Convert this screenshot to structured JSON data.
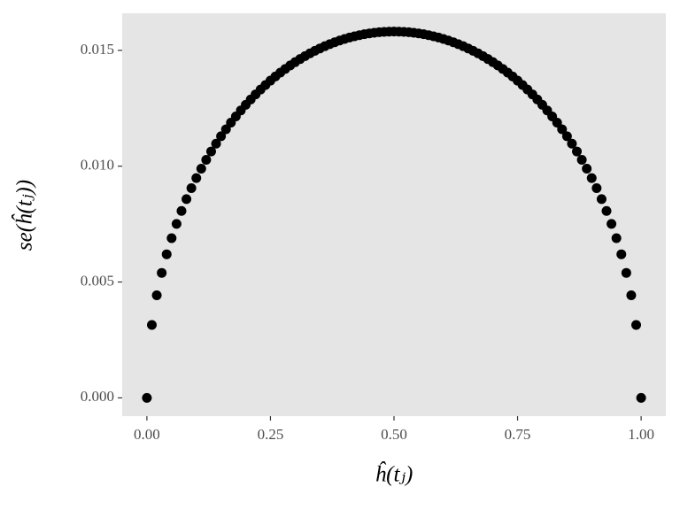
{
  "chart_data": {
    "type": "scatter",
    "x_label": "ĥ(tⱼ)",
    "y_label": "se(ĥ(tⱼ))",
    "x": [
      0,
      0.01,
      0.02,
      0.03,
      0.04,
      0.05,
      0.06,
      0.07,
      0.08,
      0.09,
      0.1,
      0.11,
      0.12,
      0.13,
      0.14,
      0.15,
      0.16,
      0.17,
      0.18,
      0.19,
      0.2,
      0.21,
      0.22,
      0.23,
      0.24,
      0.25,
      0.26,
      0.27,
      0.28,
      0.29,
      0.3,
      0.31,
      0.32,
      0.33,
      0.34,
      0.35,
      0.36,
      0.37,
      0.38,
      0.39,
      0.4,
      0.41,
      0.42,
      0.43,
      0.44,
      0.45,
      0.46,
      0.47,
      0.48,
      0.49,
      0.5,
      0.51,
      0.52,
      0.53,
      0.54,
      0.55,
      0.56,
      0.57,
      0.58,
      0.59,
      0.6,
      0.61,
      0.62,
      0.63,
      0.64,
      0.65,
      0.66,
      0.67,
      0.68,
      0.69,
      0.7,
      0.71,
      0.72,
      0.73,
      0.74,
      0.75,
      0.76,
      0.77,
      0.78,
      0.79,
      0.8,
      0.81,
      0.82,
      0.83,
      0.84,
      0.85,
      0.86,
      0.87,
      0.88,
      0.89,
      0.9,
      0.91,
      0.92,
      0.93,
      0.94,
      0.95,
      0.96,
      0.97,
      0.98,
      0.99,
      1
    ],
    "values": [
      0,
      0.003146,
      0.004427,
      0.005394,
      0.006197,
      0.006892,
      0.00751,
      0.008068,
      0.008579,
      0.00905,
      0.009487,
      0.009894,
      0.010276,
      0.010635,
      0.010973,
      0.011292,
      0.011593,
      0.011879,
      0.012149,
      0.012406,
      0.012649,
      0.01288,
      0.0131,
      0.013308,
      0.013505,
      0.013693,
      0.013871,
      0.014039,
      0.014199,
      0.014349,
      0.014491,
      0.014625,
      0.014751,
      0.014869,
      0.01498,
      0.015083,
      0.015179,
      0.015268,
      0.015349,
      0.015424,
      0.015492,
      0.015553,
      0.015608,
      0.015656,
      0.015697,
      0.015732,
      0.015761,
      0.015783,
      0.015799,
      0.015808,
      0.015811,
      0.015808,
      0.015799,
      0.015783,
      0.015761,
      0.015732,
      0.015697,
      0.015656,
      0.015608,
      0.015553,
      0.015492,
      0.015424,
      0.015349,
      0.015268,
      0.015179,
      0.015083,
      0.01498,
      0.014869,
      0.014751,
      0.014625,
      0.014491,
      0.014349,
      0.014199,
      0.014039,
      0.013871,
      0.013693,
      0.013505,
      0.013308,
      0.0131,
      0.01288,
      0.012649,
      0.012406,
      0.012149,
      0.011879,
      0.011593,
      0.011292,
      0.010973,
      0.010635,
      0.010276,
      0.009894,
      0.009487,
      0.00905,
      0.008579,
      0.008068,
      0.00751,
      0.006892,
      0.006197,
      0.005394,
      0.004427,
      0.003146,
      0
    ],
    "color": "#000000",
    "xlim": [
      -0.05,
      1.05
    ],
    "ylim": [
      -0.00079,
      0.0166
    ],
    "xticks": [
      {
        "value": 0,
        "label": "0.00"
      },
      {
        "value": 0.25,
        "label": "0.25"
      },
      {
        "value": 0.5,
        "label": "0.50"
      },
      {
        "value": 0.75,
        "label": "0.75"
      },
      {
        "value": 1,
        "label": "1.00"
      }
    ],
    "yticks": [
      {
        "value": 0,
        "label": "0.000"
      },
      {
        "value": 0.005,
        "label": "0.005"
      },
      {
        "value": 0.01,
        "label": "0.010"
      },
      {
        "value": 0.015,
        "label": "0.015"
      }
    ],
    "grid": false
  }
}
